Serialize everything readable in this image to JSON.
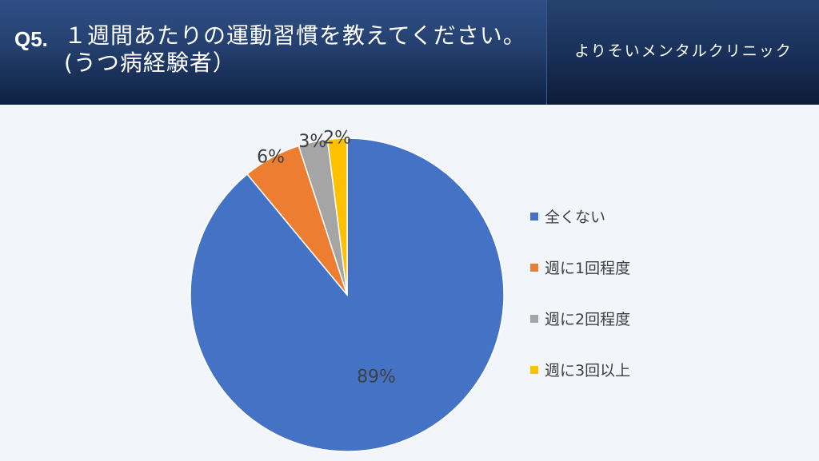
{
  "header": {
    "question_number": "Q5.",
    "question_text": "１週間あたりの運動習慣を教えてください。(うつ病経験者）",
    "clinic_name": "よりそいメンタルクリニック"
  },
  "colors": {
    "header_bg": "#24406f",
    "page_bg": "#f2f5fa",
    "label_text": "#404040"
  },
  "chart_data": {
    "type": "pie",
    "title": "",
    "start_angle": "12 o'clock",
    "direction": "clockwise",
    "legend_position": "right",
    "slices": [
      {
        "label": "全くない",
        "value": 89,
        "display": "89%",
        "color": "#4472c4"
      },
      {
        "label": "週に1回程度",
        "value": 6,
        "display": "6%",
        "color": "#ed7d31"
      },
      {
        "label": "週に2回程度",
        "value": 3,
        "display": "3%",
        "color": "#a5a5a5"
      },
      {
        "label": "週に3回以上",
        "value": 2,
        "display": "2%",
        "color": "#ffc000"
      }
    ]
  }
}
